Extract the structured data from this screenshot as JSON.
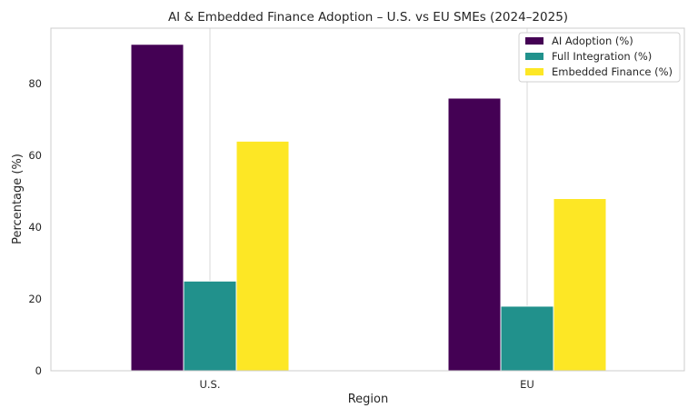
{
  "chart_data": {
    "type": "bar",
    "title": "AI & Embedded Finance Adoption – U.S. vs EU SMEs (2024–2025)",
    "xlabel": "Region",
    "ylabel": "Percentage (%)",
    "categories": [
      "U.S.",
      "EU"
    ],
    "series": [
      {
        "name": "AI Adoption (%)",
        "values": [
          91,
          76
        ],
        "color": "#440154"
      },
      {
        "name": "Full Integration (%)",
        "values": [
          25,
          18
        ],
        "color": "#21918c"
      },
      {
        "name": "Embedded Finance (%)",
        "values": [
          64,
          48
        ],
        "color": "#fde725"
      }
    ],
    "ylim": [
      0,
      95.5
    ],
    "yticks": [
      0,
      20,
      40,
      60,
      80
    ],
    "grid": "x",
    "legend": "top-right"
  }
}
